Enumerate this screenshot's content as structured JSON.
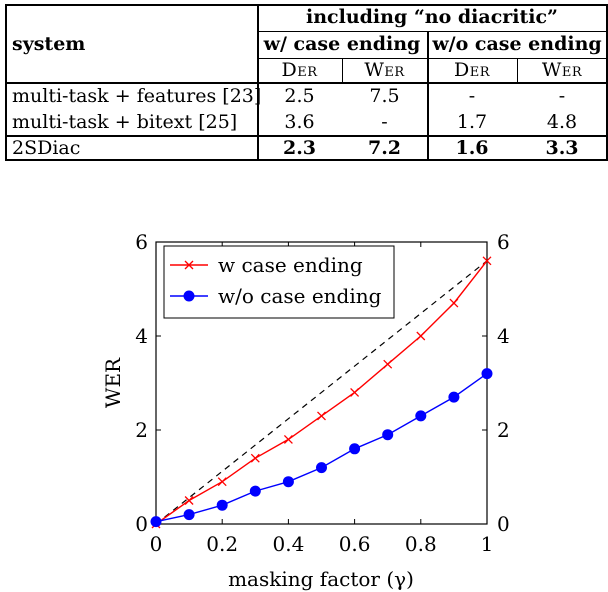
{
  "table": {
    "group_header": "including “no diacritic”",
    "system_header": "system",
    "sub_headers": [
      "w/ case ending",
      "w/o case ending"
    ],
    "metric_headers": [
      "Der",
      "Wer",
      "Der",
      "Wer"
    ],
    "rows": [
      {
        "system": "multi-task + features [23]",
        "values": [
          "2.5",
          "7.5",
          "-",
          "-"
        ]
      },
      {
        "system": "multi-task + bitext [25]",
        "values": [
          "3.6",
          "-",
          "1.7",
          "4.8"
        ]
      }
    ],
    "final_row": {
      "system": "2SDiac",
      "values": [
        "2.3",
        "7.2",
        "1.6",
        "3.3"
      ]
    }
  },
  "chart_data": {
    "type": "line",
    "xlabel": "masking factor (γ)",
    "ylabel": "WER",
    "xlim": [
      0,
      1
    ],
    "ylim": [
      0,
      6
    ],
    "xticks": [
      "0",
      "0.2",
      "0.4",
      "0.6",
      "0.8",
      "1"
    ],
    "yticks": [
      "0",
      "2",
      "4",
      "6"
    ],
    "legend_position": "top-left",
    "series": [
      {
        "name": "w case ending",
        "color": "#ff0000",
        "marker": "x",
        "x": [
          0,
          0.1,
          0.2,
          0.3,
          0.4,
          0.5,
          0.6,
          0.7,
          0.8,
          0.9,
          1.0
        ],
        "y": [
          0.0,
          0.5,
          0.9,
          1.4,
          1.8,
          2.3,
          2.8,
          3.4,
          4.0,
          4.7,
          5.6
        ]
      },
      {
        "name": "w/o case ending",
        "color": "#0000ff",
        "marker": "circle",
        "x": [
          0,
          0.1,
          0.2,
          0.3,
          0.4,
          0.5,
          0.6,
          0.7,
          0.8,
          0.9,
          1.0
        ],
        "y": [
          0.05,
          0.2,
          0.4,
          0.7,
          0.9,
          1.2,
          1.6,
          1.9,
          2.3,
          2.7,
          3.2
        ]
      }
    ],
    "reference_line": {
      "x": [
        0,
        1.0
      ],
      "y": [
        0.0,
        5.6
      ],
      "style": "dashed",
      "color": "#000000"
    }
  }
}
